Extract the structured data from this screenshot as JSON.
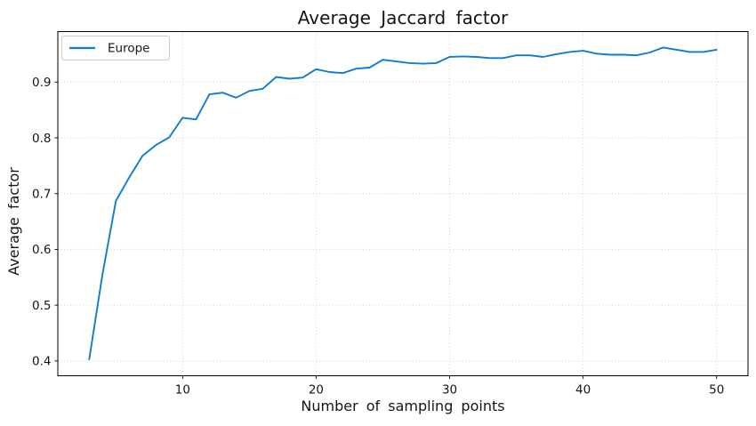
{
  "figure": {
    "background": "#ffffff",
    "text_color": "#151515",
    "grid_color": "#cccccc",
    "spine_color": "#000000"
  },
  "chart_data": {
    "type": "line",
    "title": "Average Jaccard factor",
    "xlabel": "Number of sampling points",
    "ylabel": "Average factor",
    "grid": true,
    "grid_style": "dotted",
    "legend_position": "upper-left",
    "xlim": [
      0.65,
      52.35
    ],
    "ylim": [
      0.3735,
      0.9905
    ],
    "xticks": [
      10,
      20,
      30,
      40,
      50
    ],
    "yticks": [
      0.4,
      0.5,
      0.6,
      0.7,
      0.8,
      0.9
    ],
    "x": [
      3,
      4,
      5,
      6,
      7,
      8,
      9,
      10,
      11,
      12,
      13,
      14,
      15,
      16,
      17,
      18,
      19,
      20,
      21,
      22,
      23,
      24,
      25,
      26,
      27,
      28,
      29,
      30,
      31,
      32,
      33,
      34,
      35,
      36,
      37,
      38,
      39,
      40,
      41,
      42,
      43,
      44,
      45,
      46,
      47,
      48,
      49,
      50
    ],
    "series": [
      {
        "name": "Europe",
        "color": "#0f7ccf",
        "values": [
          0.403,
          0.556,
          0.687,
          0.729,
          0.768,
          0.787,
          0.801,
          0.836,
          0.833,
          0.878,
          0.881,
          0.872,
          0.884,
          0.888,
          0.909,
          0.906,
          0.908,
          0.923,
          0.918,
          0.916,
          0.924,
          0.926,
          0.94,
          0.937,
          0.934,
          0.933,
          0.934,
          0.945,
          0.946,
          0.945,
          0.943,
          0.943,
          0.948,
          0.948,
          0.945,
          0.95,
          0.954,
          0.956,
          0.951,
          0.949,
          0.949,
          0.948,
          0.953,
          0.962,
          0.958,
          0.954,
          0.954,
          0.958
        ]
      }
    ]
  }
}
